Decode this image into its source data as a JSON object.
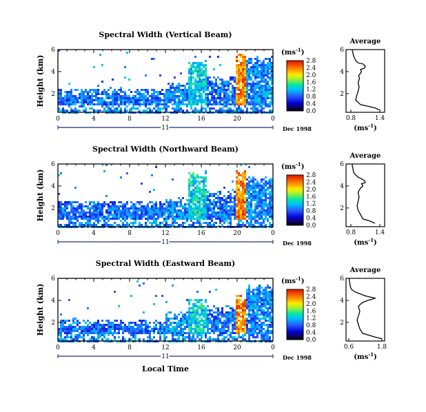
{
  "chart_data": [
    {
      "type": "heatmap",
      "title": "Spectral Width (Vertical Beam)",
      "ylabel": "Height (km)",
      "xticks": [
        "0",
        "4",
        "8",
        "12",
        "16",
        "20",
        "0"
      ],
      "yticks": [
        "2",
        "4",
        "6"
      ],
      "xlim": [
        0,
        24
      ],
      "ylim": [
        0.3,
        6
      ],
      "day_label": "11",
      "date_label": "Dec 1998",
      "colorbar": {
        "unit_base": "(ms",
        "unit_exp": "-1",
        "unit_close": ")",
        "ticks": [
          "0.0",
          "0.4",
          "0.8",
          "1.2",
          "1.6",
          "2.0",
          "2.4",
          "2.8"
        ],
        "range": [
          0,
          2.8
        ]
      },
      "fields": [
        {
          "x0": 0,
          "x1": 24,
          "y0": 0.3,
          "y1": 1.0,
          "width": 1.0
        },
        {
          "x0": 0,
          "x1": 12,
          "y0": 1.0,
          "y1": 2.6,
          "width": 0.9
        },
        {
          "x0": 12,
          "x1": 14.5,
          "y0": 1.0,
          "y1": 3.0,
          "width": 1.0
        },
        {
          "x0": 14.5,
          "x1": 16.5,
          "y0": 1.0,
          "y1": 5.2,
          "width": 1.3
        },
        {
          "x0": 16.5,
          "x1": 19.8,
          "y0": 1.0,
          "y1": 3.6,
          "width": 0.9
        },
        {
          "x0": 19.8,
          "x1": 21,
          "y0": 1.0,
          "y1": 5.7,
          "width": 2.4
        },
        {
          "x0": 21,
          "x1": 24,
          "y0": 1.0,
          "y1": 5.5,
          "width": 1.0
        }
      ],
      "profile": {
        "title": "Average",
        "xticks": [
          "0.8",
          "1.4"
        ],
        "xlim": [
          0.7,
          1.5
        ],
        "yticks": [
          "2",
          "4",
          "6"
        ],
        "ylim": [
          0.3,
          6
        ],
        "xlabel_base": "(ms",
        "xlabel_exp": "-1",
        "xlabel_close": ")",
        "x": [
          1.4,
          1.3,
          1.0,
          0.9,
          0.92,
          0.95,
          0.97,
          0.95,
          0.98,
          0.96,
          0.99,
          1.02,
          1.0,
          1.08,
          1.1,
          1.05,
          0.95,
          0.9,
          0.88,
          0.86,
          0.85,
          0.85,
          0.84,
          0.84,
          0.83,
          0.83
        ],
        "y": [
          0.5,
          0.7,
          1.0,
          1.4,
          1.8,
          2.2,
          2.6,
          3.0,
          3.4,
          3.6,
          3.8,
          4.0,
          4.2,
          4.3,
          4.5,
          4.7,
          4.8,
          5.0,
          5.2,
          5.4,
          5.5,
          5.6,
          5.7,
          5.8,
          5.9,
          6.0
        ]
      }
    },
    {
      "type": "heatmap",
      "title": "Spectral Width (Northward Beam)",
      "ylabel": "Height (km)",
      "xticks": [
        "0",
        "4",
        "8",
        "12",
        "16",
        "20",
        "0"
      ],
      "yticks": [
        "2",
        "4",
        "6"
      ],
      "xlim": [
        0,
        24
      ],
      "ylim": [
        0.3,
        6
      ],
      "day_label": "11",
      "date_label": "Dec 1998",
      "colorbar": {
        "unit_base": "(ms",
        "unit_exp": "-1",
        "unit_close": ")",
        "ticks": [
          "0.0",
          "0.4",
          "0.8",
          "1.2",
          "1.6",
          "2.0",
          "2.4",
          "2.8"
        ],
        "range": [
          0,
          2.8
        ]
      },
      "fields": [
        {
          "x0": 0,
          "x1": 24,
          "y0": 0.3,
          "y1": 1.0,
          "width": 1.0
        },
        {
          "x0": 0,
          "x1": 12,
          "y0": 1.0,
          "y1": 2.8,
          "width": 0.9
        },
        {
          "x0": 12,
          "x1": 14.5,
          "y0": 1.0,
          "y1": 3.0,
          "width": 1.0
        },
        {
          "x0": 14.5,
          "x1": 16.5,
          "y0": 1.0,
          "y1": 5.3,
          "width": 1.3
        },
        {
          "x0": 16.5,
          "x1": 19.8,
          "y0": 1.0,
          "y1": 3.6,
          "width": 0.9
        },
        {
          "x0": 19.8,
          "x1": 21,
          "y0": 1.0,
          "y1": 5.6,
          "width": 2.4
        },
        {
          "x0": 21,
          "x1": 24,
          "y0": 1.0,
          "y1": 5.0,
          "width": 1.0
        }
      ],
      "profile": {
        "title": "Average",
        "xticks": [
          "0.8",
          "1.4"
        ],
        "xlim": [
          0.7,
          1.5
        ],
        "yticks": [
          "2",
          "4",
          "6"
        ],
        "ylim": [
          0.3,
          6
        ],
        "xlabel_base": "(ms",
        "xlabel_exp": "-1",
        "xlabel_close": ")",
        "x": [
          1.3,
          1.2,
          1.05,
          1.0,
          0.95,
          0.93,
          0.95,
          0.97,
          0.95,
          0.97,
          1.0,
          1.05,
          1.02,
          1.1,
          1.08,
          1.0,
          0.95,
          0.9,
          0.86,
          0.85,
          0.84,
          0.84,
          0.83,
          0.83
        ],
        "y": [
          0.6,
          0.8,
          1.0,
          1.4,
          1.8,
          2.2,
          2.6,
          3.0,
          3.4,
          3.6,
          3.8,
          4.0,
          4.2,
          4.3,
          4.5,
          4.7,
          4.8,
          5.0,
          5.2,
          5.4,
          5.6,
          5.7,
          5.8,
          6.0
        ]
      }
    },
    {
      "type": "heatmap",
      "title": "Spectral Width (Eastward Beam)",
      "ylabel": "Height (km)",
      "xticks": [
        "0",
        "4",
        "8",
        "12",
        "16",
        "20",
        "0"
      ],
      "yticks": [
        "2",
        "4",
        "6"
      ],
      "xlim": [
        0,
        24
      ],
      "ylim": [
        0.3,
        6
      ],
      "day_label": "11",
      "date_label": "Dec 1998",
      "xlabel": "Local Time",
      "colorbar": {
        "unit_base": "(ms",
        "unit_exp": "-1",
        "unit_close": ")",
        "ticks": [
          "0.0",
          "0.4",
          "0.8",
          "1.2",
          "1.6",
          "2.0",
          "2.4",
          "2.8"
        ],
        "range": [
          0,
          2.8
        ]
      },
      "fields": [
        {
          "x0": 0,
          "x1": 24,
          "y0": 0.3,
          "y1": 1.0,
          "width": 1.0
        },
        {
          "x0": 0,
          "x1": 12,
          "y0": 1.0,
          "y1": 2.4,
          "width": 0.9
        },
        {
          "x0": 12,
          "x1": 14.5,
          "y0": 1.0,
          "y1": 3.0,
          "width": 1.0
        },
        {
          "x0": 14.5,
          "x1": 16.5,
          "y0": 1.0,
          "y1": 4.2,
          "width": 1.3
        },
        {
          "x0": 16.5,
          "x1": 19.8,
          "y0": 1.0,
          "y1": 3.6,
          "width": 0.9
        },
        {
          "x0": 19.8,
          "x1": 21,
          "y0": 1.0,
          "y1": 4.5,
          "width": 2.4
        },
        {
          "x0": 21,
          "x1": 24,
          "y0": 1.0,
          "y1": 5.5,
          "width": 1.0
        }
      ],
      "profile": {
        "title": "Average",
        "xticks": [
          "0.6",
          "1.8"
        ],
        "xlim": [
          0.5,
          1.9
        ],
        "yticks": [
          "2",
          "4",
          "6"
        ],
        "ylim": [
          0.3,
          6
        ],
        "xlabel_base": "(ms",
        "xlabel_exp": "-1",
        "xlabel_close": ")",
        "x": [
          1.8,
          1.5,
          1.1,
          1.0,
          0.95,
          0.9,
          0.95,
          1.0,
          0.95,
          1.0,
          1.1,
          1.3,
          1.45,
          1.55,
          1.2,
          1.0,
          0.8,
          0.7,
          0.66,
          0.64,
          0.62,
          0.62
        ],
        "y": [
          0.5,
          0.7,
          1.0,
          1.4,
          1.8,
          2.2,
          2.6,
          3.0,
          3.4,
          3.6,
          3.8,
          4.0,
          4.1,
          4.2,
          4.4,
          4.6,
          4.8,
          5.0,
          5.2,
          5.5,
          5.8,
          6.0
        ]
      }
    }
  ]
}
